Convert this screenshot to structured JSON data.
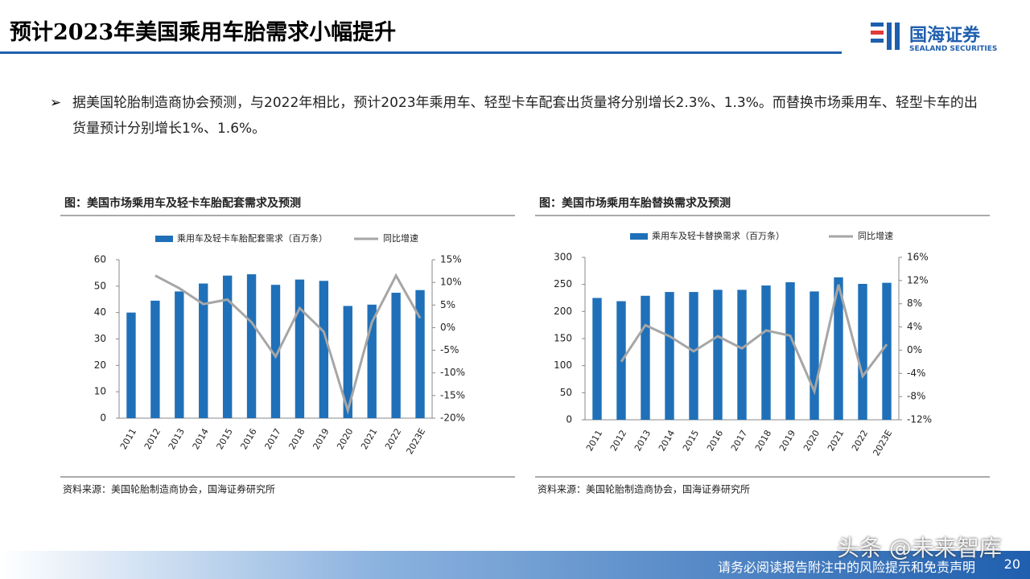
{
  "header": {
    "title": "预计2023年美国乘用车胎需求小幅提升",
    "logo_cn": "国海证券",
    "logo_en": "SEALAND SECURITIES"
  },
  "bullet": "据美国轮胎制造商协会预测，与2022年相比，预计2023年乘用车、轻型卡车配套出货量将分别增长2.3%、1.3%。而替换市场乘用车、轻型卡车的出货量预计分别增长1%、1.6%。",
  "chart_data": [
    {
      "type": "bar",
      "title": "图：美国市场乘用车及轻卡车胎配套需求及预测",
      "categories": [
        "2011",
        "2012",
        "2013",
        "2014",
        "2015",
        "2016",
        "2017",
        "2018",
        "2019",
        "2020",
        "2021",
        "2022",
        "2023E"
      ],
      "series": [
        {
          "name": "乘用车及轻卡车胎配套需求（百万条）",
          "color": "#1f70b8",
          "values": [
            40,
            44.5,
            48,
            51,
            54,
            54.5,
            50.5,
            52.5,
            52,
            42.5,
            43,
            47.5,
            48.5
          ]
        },
        {
          "name": "同比增速",
          "color": "#a6a6a6",
          "type": "line",
          "axis": "y2",
          "values": [
            null,
            11.5,
            8.7,
            5.2,
            6.2,
            1.2,
            -6.4,
            4.3,
            -0.9,
            -18.3,
            1.2,
            11.5,
            2.1
          ]
        }
      ],
      "ylim": [
        0,
        60
      ],
      "yticks": [
        0,
        10,
        20,
        30,
        40,
        50,
        60
      ],
      "y2lim": [
        -20,
        15
      ],
      "y2ticks": [
        {
          "value": -20,
          "label": "-20%"
        },
        {
          "value": -15,
          "label": "-15%"
        },
        {
          "value": -10,
          "label": "-10%"
        },
        {
          "value": -5,
          "label": "-5%"
        },
        {
          "value": 0,
          "label": "0%"
        },
        {
          "value": 5,
          "label": "5%"
        },
        {
          "value": 10,
          "label": "10%"
        },
        {
          "value": 15,
          "label": "15%"
        }
      ],
      "legend": "top",
      "source": "资料来源：美国轮胎制造商协会，国海证券研究所"
    },
    {
      "type": "bar",
      "title": "图：美国市场乘用车胎替换需求及预测",
      "categories": [
        "2011",
        "2012",
        "2013",
        "2014",
        "2015",
        "2016",
        "2017",
        "2018",
        "2019",
        "2020",
        "2021",
        "2022",
        "2023E"
      ],
      "series": [
        {
          "name": "乘用车及轻卡替换需求（百万条）",
          "color": "#1f70b8",
          "values": [
            225,
            219,
            229,
            236,
            236,
            240,
            240,
            248,
            254,
            237,
            263,
            251,
            253
          ]
        },
        {
          "name": "同比增速",
          "color": "#a6a6a6",
          "type": "line",
          "axis": "y2",
          "values": [
            null,
            -2.0,
            4.3,
            2.4,
            -0.2,
            2.4,
            0.3,
            3.4,
            2.5,
            -7.1,
            11.3,
            -4.5,
            1.0
          ]
        }
      ],
      "ylim": [
        0,
        300
      ],
      "yticks": [
        0,
        50,
        100,
        150,
        200,
        250,
        300
      ],
      "y2lim": [
        -12,
        16
      ],
      "y2ticks": [
        {
          "value": -12,
          "label": "-12%"
        },
        {
          "value": -8,
          "label": "-8%"
        },
        {
          "value": -4,
          "label": "-4%"
        },
        {
          "value": 0,
          "label": "0%"
        },
        {
          "value": 4,
          "label": "4%"
        },
        {
          "value": 8,
          "label": "8%"
        },
        {
          "value": 12,
          "label": "12%"
        },
        {
          "value": 16,
          "label": "16%"
        }
      ],
      "legend": "top",
      "source": "资料来源：美国轮胎制造商协会，国海证券研究所"
    }
  ],
  "footer": {
    "disclaimer": "请务必阅读报告附注中的风险提示和免责声明",
    "page": "20",
    "watermark": "头条 @未来智库"
  }
}
